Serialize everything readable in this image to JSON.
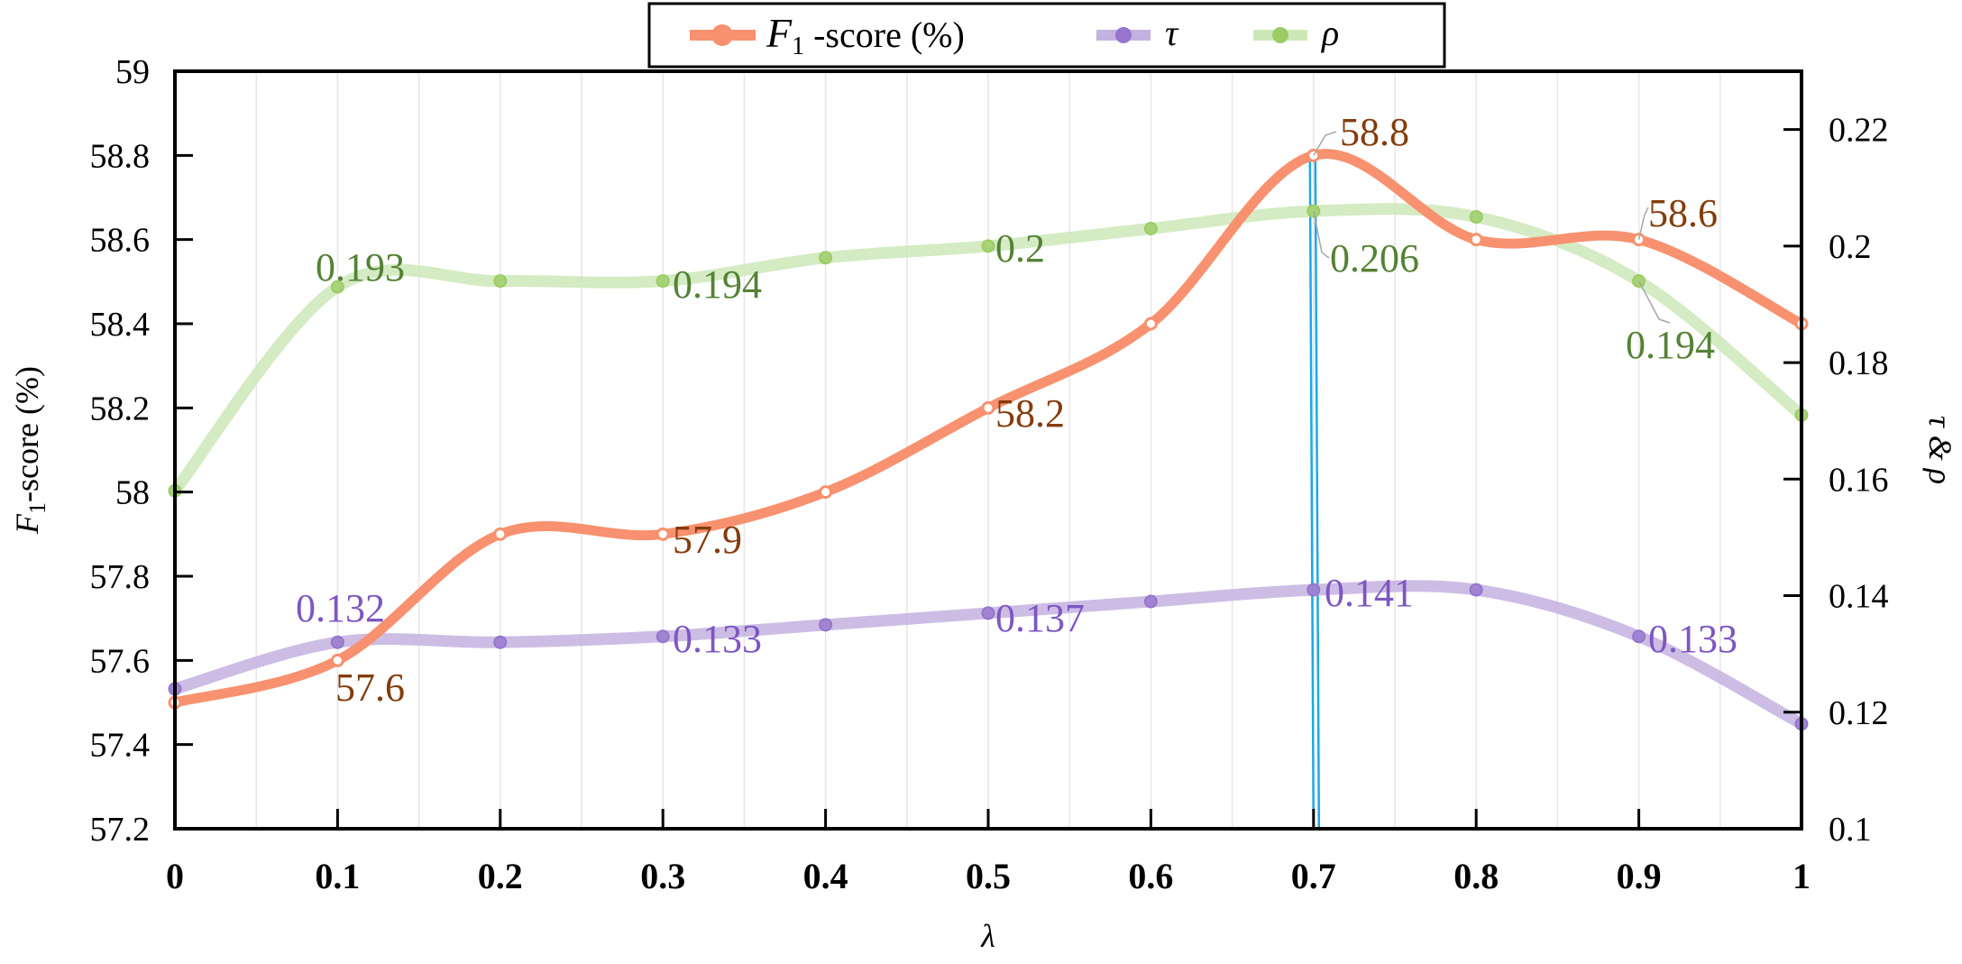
{
  "chart_data": {
    "type": "line",
    "x": [
      0,
      0.1,
      0.2,
      0.3,
      0.4,
      0.5,
      0.6,
      0.7,
      0.8,
      0.9,
      1
    ],
    "xlabel": "λ",
    "xlim": [
      0,
      1
    ],
    "xticks": [
      "0",
      "0.1",
      "0.2",
      "0.3",
      "0.4",
      "0.5",
      "0.6",
      "0.7",
      "0.8",
      "0.9",
      "1"
    ],
    "ylabel_left": {
      "italic": "F",
      "sub": "1",
      "rest": "-score (%)"
    },
    "ylim_left": [
      57.2,
      59
    ],
    "yticks_left": [
      "57.2",
      "57.4",
      "57.6",
      "57.8",
      "58",
      "58.2",
      "58.4",
      "58.6",
      "58.8",
      "59"
    ],
    "ylabel_right": "τ & ρ",
    "ylim_right": [
      0.1,
      0.23
    ],
    "yticks_right": [
      "0.1",
      "0.12",
      "0.14",
      "0.16",
      "0.18",
      "0.2",
      "0.22"
    ],
    "grid": "vertical minor lines",
    "legend_placement": "top-center",
    "highlight_x": 0.7,
    "series": [
      {
        "name": "F1-score (%)",
        "legend": {
          "italic": "F",
          "sub": "1",
          "rest": " -score (%)"
        },
        "axis": "left",
        "color": "#F8916F",
        "label_color": "#843C0C",
        "values": [
          57.5,
          57.6,
          57.9,
          57.9,
          58.0,
          58.2,
          58.4,
          58.8,
          58.6,
          58.6,
          58.4
        ],
        "data_labels": [
          null,
          "57.6",
          null,
          "57.9",
          null,
          "58.2",
          null,
          "58.8",
          null,
          "58.6",
          null
        ]
      },
      {
        "name": "τ",
        "legend": {
          "italic": "τ"
        },
        "axis": "right",
        "color": "#C4B2E0",
        "marker_color": "#9575CD",
        "label_color": "#7E57C2",
        "values": [
          0.124,
          0.132,
          0.132,
          0.133,
          0.135,
          0.137,
          0.139,
          0.141,
          0.141,
          0.133,
          0.118
        ],
        "data_labels": [
          null,
          "0.132",
          null,
          "0.133",
          null,
          "0.137",
          null,
          "0.141",
          null,
          "0.133",
          null
        ]
      },
      {
        "name": "ρ",
        "legend": {
          "italic": "ρ"
        },
        "axis": "right",
        "color": "#CDE8B8",
        "marker_color": "#9CCC65",
        "label_color": "#548235",
        "values": [
          0.158,
          0.193,
          0.194,
          0.194,
          0.198,
          0.2,
          0.203,
          0.206,
          0.205,
          0.194,
          0.171
        ],
        "data_labels": [
          null,
          "0.193",
          null,
          "0.194",
          null,
          "0.2",
          null,
          "0.206",
          null,
          "0.194",
          null
        ]
      }
    ]
  }
}
